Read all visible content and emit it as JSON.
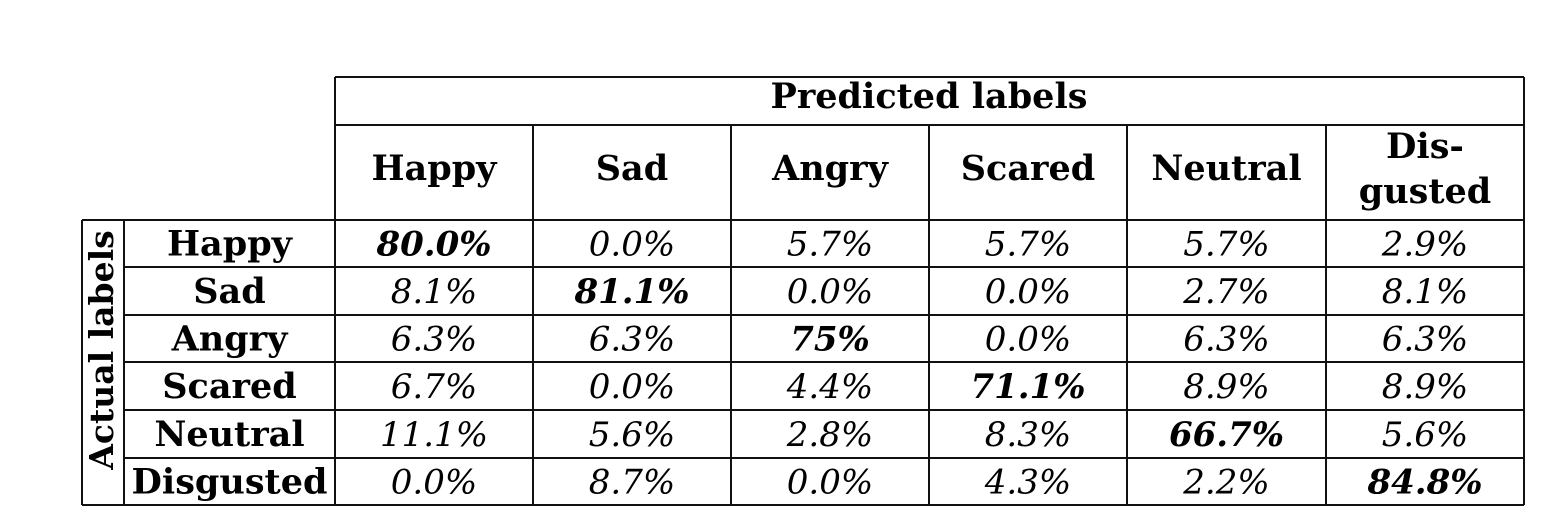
{
  "chart_data": {
    "type": "table",
    "column_header": "Predicted labels",
    "row_header": "Actual labels",
    "columns": [
      "Happy",
      "Sad",
      "Angry",
      "Scared",
      "Neutral",
      "Dis-\ngusted"
    ],
    "rows": [
      "Happy",
      "Sad",
      "Angry",
      "Scared",
      "Neutral",
      "Disgusted"
    ],
    "cells": [
      [
        "80.0%",
        "0.0%",
        "5.7%",
        "5.7%",
        "5.7%",
        "2.9%"
      ],
      [
        "8.1%",
        "81.1%",
        "0.0%",
        "0.0%",
        "2.7%",
        "8.1%"
      ],
      [
        "6.3%",
        "6.3%",
        "75%",
        "0.0%",
        "6.3%",
        "6.3%"
      ],
      [
        "6.7%",
        "0.0%",
        "4.4%",
        "71.1%",
        "8.9%",
        "8.9%"
      ],
      [
        "11.1%",
        "5.6%",
        "2.8%",
        "8.3%",
        "66.7%",
        "5.6%"
      ],
      [
        "0.0%",
        "8.7%",
        "0.0%",
        "4.3%",
        "2.2%",
        "84.8%"
      ]
    ],
    "bold_cells": "diagonal"
  }
}
